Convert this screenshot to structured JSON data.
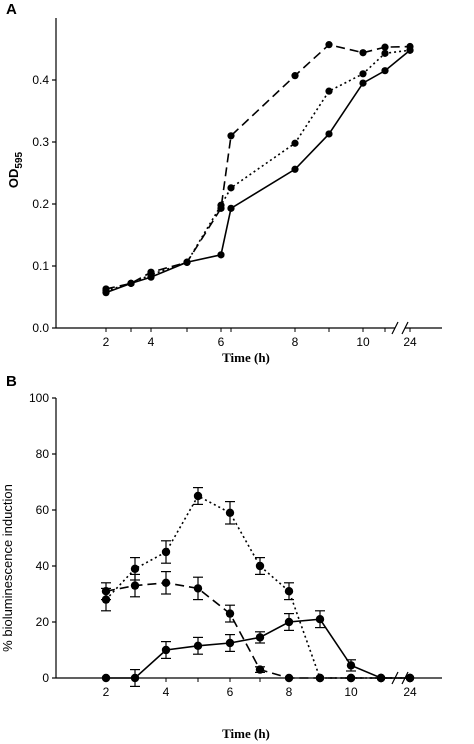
{
  "chart_data": [
    {
      "panel": "A",
      "type": "line",
      "ylabel_main": "OD",
      "ylabel_sub": "595",
      "xlabel": "Time (h)",
      "categories": [
        "2",
        "3",
        "4",
        "5",
        "6",
        "7",
        "8",
        "9",
        "10",
        "11",
        "24"
      ],
      "x_tick_labels": [
        "2",
        "4",
        "6",
        "8",
        "10",
        "24"
      ],
      "ylim": [
        0,
        0.5
      ],
      "y_ticks": [
        "0.0",
        "0.1",
        "0.2",
        "0.3",
        "0.4"
      ],
      "grid": false,
      "axis_break": true,
      "series": [
        {
          "style": "dashed",
          "values": [
            0.063,
            0.072,
            0.09,
            0.106,
            0.193,
            0.31,
            0.407,
            0.457,
            0.444,
            0.453,
            0.454
          ]
        },
        {
          "style": "dotted",
          "values": [
            0.06,
            0.072,
            0.086,
            0.106,
            0.198,
            0.226,
            0.298,
            0.382,
            0.41,
            0.443,
            0.448
          ]
        },
        {
          "style": "solid",
          "values": [
            0.057,
            0.072,
            0.082,
            0.106,
            0.118,
            0.193,
            0.256,
            0.313,
            0.395,
            0.415,
            0.448
          ]
        }
      ]
    },
    {
      "panel": "B",
      "type": "line",
      "ylabel": "% bioluminescence induction",
      "xlabel": "Time (h)",
      "categories": [
        "2",
        "3",
        "4",
        "5",
        "6",
        "7",
        "8",
        "9",
        "10",
        "11",
        "24"
      ],
      "x_tick_labels": [
        "2",
        "4",
        "6",
        "8",
        "10",
        "24"
      ],
      "ylim": [
        0,
        100
      ],
      "y_ticks": [
        "0",
        "20",
        "40",
        "60",
        "80",
        "100"
      ],
      "grid": false,
      "axis_break": true,
      "series": [
        {
          "style": "dotted",
          "values": [
            28,
            39,
            45,
            65,
            59,
            40,
            31,
            0,
            0,
            0,
            0
          ],
          "errors": [
            4,
            4,
            4,
            3,
            4,
            3,
            3,
            0,
            0,
            0,
            0
          ]
        },
        {
          "style": "dashed",
          "values": [
            31,
            33,
            34,
            32,
            23,
            3,
            0,
            0,
            0,
            0,
            0
          ],
          "errors": [
            3,
            4,
            4,
            4,
            3,
            1,
            0,
            0,
            0,
            0,
            0
          ]
        },
        {
          "style": "solid",
          "values": [
            0,
            0,
            10,
            11.5,
            12.5,
            14.5,
            20,
            21,
            4.5,
            0,
            0
          ],
          "errors": [
            0,
            3,
            3,
            3,
            3,
            2,
            3,
            3,
            2,
            0,
            0
          ]
        }
      ]
    }
  ]
}
